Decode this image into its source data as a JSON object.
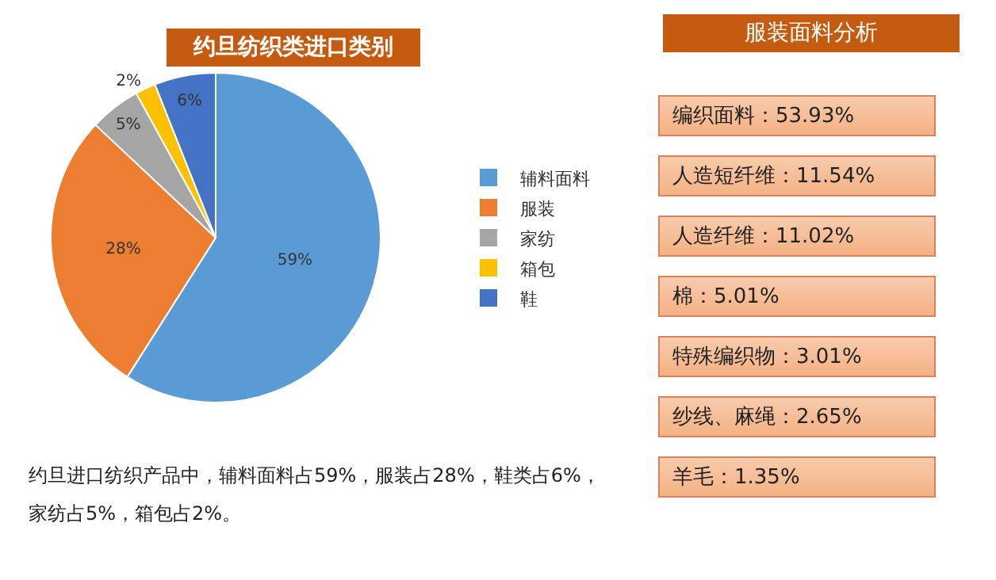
{
  "chart_data": [
    {
      "type": "pie",
      "title": "约旦纺织类进口类别",
      "categories": [
        "辅料面料",
        "服装",
        "家纺",
        "箱包",
        "鞋"
      ],
      "values": [
        59,
        28,
        5,
        2,
        6
      ],
      "colors": [
        "#5b9bd5",
        "#ed7d31",
        "#a5a5a5",
        "#ffc000",
        "#4472c4"
      ],
      "value_labels": [
        "59%",
        "28%",
        "5%",
        "2%",
        "6%"
      ],
      "legend": "right",
      "annotations": [
        "约旦进口纺织产品中，辅料面料占59%，服装占28%，鞋类占6%，家纺占5%，箱包占2%。"
      ]
    },
    {
      "type": "other",
      "title": "服装面料分析",
      "annotations": [
        "编织面料：53.93%",
        "人造短纤维：11.54%",
        "人造纤维：11.02%",
        "棉：5.01%",
        "特殊编织物：3.01%",
        "纱线、麻绳：2.65%",
        "羊毛：1.35%"
      ]
    }
  ]
}
